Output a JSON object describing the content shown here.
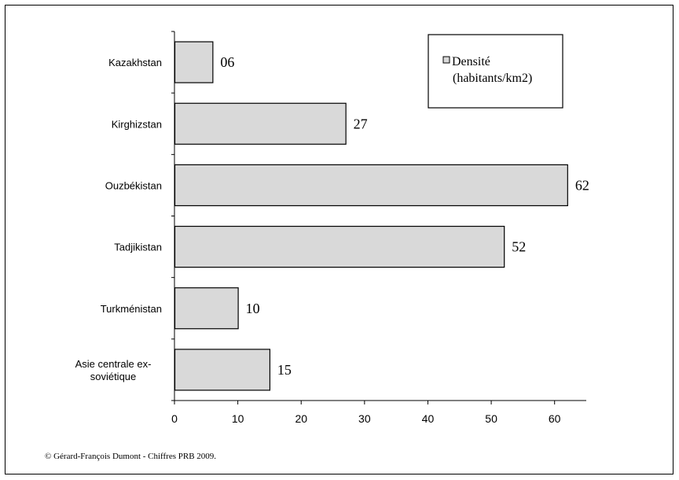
{
  "chart_data": {
    "type": "bar",
    "orientation": "horizontal",
    "categories": [
      "Kazakhstan",
      "Kirghizstan",
      "Ouzbékistan",
      "Tadjikistan",
      "Turkménistan",
      "Asie centrale ex-soviétique"
    ],
    "category_lines": [
      [
        "Kazakhstan"
      ],
      [
        "Kirghizstan"
      ],
      [
        "Ouzbékistan"
      ],
      [
        "Tadjikistan"
      ],
      [
        "Turkménistan"
      ],
      [
        "Asie centrale ex-",
        "soviétique"
      ]
    ],
    "series": [
      {
        "name": "Densité (habitants/km2)",
        "values": [
          6,
          27,
          62,
          52,
          10,
          15
        ]
      }
    ],
    "data_labels": [
      "06",
      "27",
      "62",
      "52",
      "10",
      "15"
    ],
    "xlim": [
      0,
      65
    ],
    "xticks": [
      0,
      10,
      20,
      30,
      40,
      50,
      60
    ],
    "grid": false,
    "legend_position": "top-right",
    "legend_lines": [
      "Densité",
      "(habitants/km2)"
    ],
    "bar_fill": "#d9d9d9",
    "bar_stroke": "#000000"
  },
  "footer": "© Gérard-François Dumont - Chiffres  PRB 2009."
}
